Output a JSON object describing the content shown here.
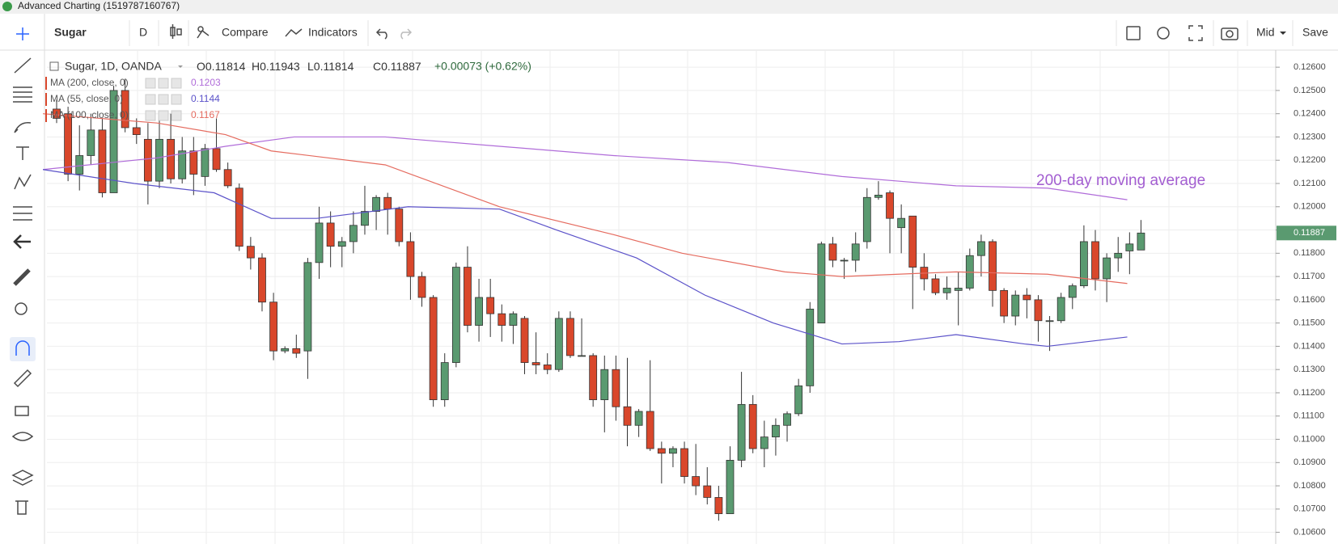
{
  "window_title": "Advanced Charting (1519787160767)",
  "toolbar": {
    "symbol": "Sugar",
    "interval": "D",
    "compare": "Compare",
    "indicators": "Indicators",
    "price_type": "Mid",
    "save": "Save"
  },
  "chart_data": {
    "type": "candlestick",
    "legend": {
      "symbol": "Sugar, 1D, OANDA",
      "ohlc": [
        {
          "label": "O",
          "value": 0.11814
        },
        {
          "label": "H",
          "value": 0.11943
        },
        {
          "label": "L",
          "value": 0.11814
        },
        {
          "label": "C",
          "value": 0.11887
        }
      ],
      "change": "+0.00073 (+0.62%)"
    },
    "up_color": "#5a9a70",
    "down_color": "#d9472b",
    "open": [
      0.1242,
      0.124,
      0.1214,
      0.1222,
      0.1233,
      0.1206,
      0.125,
      0.1234,
      0.1229,
      0.1211,
      0.1229,
      0.1212,
      0.1224,
      0.1213,
      0.1225,
      0.1216,
      0.1208,
      0.1183,
      0.1178,
      0.1159,
      0.1138,
      0.1139,
      0.1138,
      0.1176,
      0.1193,
      0.1183,
      0.1185,
      0.1192,
      0.1198,
      0.1204,
      0.1199,
      0.1185,
      0.117,
      0.1161,
      0.1117,
      0.1133,
      0.1174,
      0.1149,
      0.1161,
      0.1154,
      0.1149,
      0.1152,
      0.1133,
      0.1132,
      0.113,
      0.1152,
      0.1136,
      0.1136,
      0.1117,
      0.113,
      0.1114,
      0.1106,
      0.1112,
      0.1096,
      0.1094,
      0.1096,
      0.1084,
      0.108,
      0.1075,
      0.1068,
      0.1091,
      0.1115,
      0.1096,
      0.1101,
      0.1106,
      0.1111,
      0.1123,
      0.115,
      0.1184,
      0.1177,
      0.1177,
      0.1185,
      0.1204,
      0.1206,
      0.1191,
      0.1196,
      0.1174,
      0.1169,
      0.1163,
      0.1164,
      0.1165,
      0.1179,
      0.1185,
      0.1164,
      0.1153,
      0.1162,
      0.116,
      0.1151,
      0.1151,
      0.1161,
      0.1166,
      0.1185,
      0.1169,
      0.1178,
      0.1181,
      0.11814
    ],
    "high": [
      0.1246,
      0.1243,
      0.1235,
      0.124,
      0.1238,
      0.1252,
      0.1255,
      0.1238,
      0.1236,
      0.1238,
      0.124,
      0.123,
      0.123,
      0.1227,
      0.1238,
      0.1219,
      0.121,
      0.1187,
      0.118,
      0.1163,
      0.114,
      0.1145,
      0.1178,
      0.12,
      0.1198,
      0.1187,
      0.1198,
      0.1209,
      0.1205,
      0.1206,
      0.12,
      0.1189,
      0.1172,
      0.1162,
      0.1137,
      0.1176,
      0.1183,
      0.1169,
      0.1169,
      0.1158,
      0.1155,
      0.1153,
      0.1146,
      0.1137,
      0.1155,
      0.1155,
      0.1152,
      0.1137,
      0.1136,
      0.1136,
      0.1135,
      0.1113,
      0.1134,
      0.1099,
      0.1097,
      0.1099,
      0.1098,
      0.1088,
      0.108,
      0.1097,
      0.1129,
      0.1119,
      0.1108,
      0.1109,
      0.1112,
      0.1126,
      0.1159,
      0.1185,
      0.1187,
      0.1178,
      0.1189,
      0.1208,
      0.1211,
      0.1207,
      0.1201,
      0.1196,
      0.118,
      0.1171,
      0.117,
      0.1172,
      0.1182,
      0.1188,
      0.1186,
      0.1165,
      0.1164,
      0.1165,
      0.1162,
      0.1153,
      0.1163,
      0.1167,
      0.1192,
      0.119,
      0.118,
      0.1187,
      0.1189,
      0.11943
    ],
    "low": [
      0.1236,
      0.1211,
      0.1207,
      0.1218,
      0.1204,
      0.1206,
      0.1232,
      0.1227,
      0.1201,
      0.1208,
      0.121,
      0.121,
      0.1205,
      0.1209,
      0.1215,
      0.1208,
      0.1181,
      0.1173,
      0.1155,
      0.1134,
      0.1137,
      0.1135,
      0.1126,
      0.1169,
      0.1174,
      0.1174,
      0.118,
      0.1188,
      0.119,
      0.1188,
      0.1183,
      0.116,
      0.1157,
      0.1114,
      0.1114,
      0.1131,
      0.1146,
      0.1142,
      0.1144,
      0.1142,
      0.1141,
      0.1128,
      0.1128,
      0.1128,
      0.1129,
      0.1135,
      0.1136,
      0.1114,
      0.1103,
      0.1108,
      0.1097,
      0.1101,
      0.1095,
      0.1081,
      0.1088,
      0.1081,
      0.1076,
      0.1072,
      0.1065,
      0.1068,
      0.1088,
      0.1094,
      0.1088,
      0.1093,
      0.1099,
      0.111,
      0.112,
      0.115,
      0.1174,
      0.1169,
      0.1172,
      0.1182,
      0.1203,
      0.118,
      0.118,
      0.1156,
      0.1164,
      0.1162,
      0.116,
      0.1149,
      0.1164,
      0.117,
      0.1157,
      0.115,
      0.1149,
      0.1152,
      0.1142,
      0.1138,
      0.115,
      0.1156,
      0.1165,
      0.1164,
      0.1159,
      0.1172,
      0.1171,
      0.11814
    ],
    "close": [
      0.1238,
      0.1214,
      0.1222,
      0.1233,
      0.1206,
      0.125,
      0.1234,
      0.1231,
      0.1211,
      0.1229,
      0.1212,
      0.1224,
      0.1214,
      0.1225,
      0.1216,
      0.1209,
      0.1183,
      0.1178,
      0.1159,
      0.1138,
      0.1139,
      0.1137,
      0.1176,
      0.1193,
      0.1183,
      0.1185,
      0.1192,
      0.1198,
      0.1204,
      0.1199,
      0.1185,
      0.117,
      0.1161,
      0.1117,
      0.1133,
      0.1174,
      0.1149,
      0.1161,
      0.1154,
      0.1149,
      0.1154,
      0.1133,
      0.1132,
      0.113,
      0.1152,
      0.1136,
      0.1136,
      0.1117,
      0.113,
      0.1114,
      0.1106,
      0.1112,
      0.1096,
      0.1094,
      0.1096,
      0.1084,
      0.108,
      0.1075,
      0.1068,
      0.1091,
      0.1115,
      0.1096,
      0.1101,
      0.1106,
      0.1111,
      0.1123,
      0.1156,
      0.1184,
      0.1177,
      0.1177,
      0.1184,
      0.1204,
      0.1205,
      0.1195,
      0.1195,
      0.1174,
      0.1169,
      0.1163,
      0.1165,
      0.1165,
      0.1179,
      0.1185,
      0.1164,
      0.1153,
      0.1162,
      0.116,
      0.1151,
      0.1151,
      0.1161,
      0.1166,
      0.1185,
      0.1169,
      0.1178,
      0.118,
      0.1184,
      0.11887
    ],
    "series": [
      {
        "name": "MA (200, close, 0)",
        "color": "#b06cd9",
        "last": 0.1203,
        "x": [
          0,
          10,
          16,
          22,
          30,
          40,
          50,
          60,
          70,
          80,
          88,
          95
        ],
        "values": [
          0.1216,
          0.1221,
          0.1226,
          0.123,
          0.123,
          0.1226,
          0.1222,
          0.1219,
          0.1213,
          0.1209,
          0.1208,
          0.1203
        ]
      },
      {
        "name": "MA (55, close, 0)",
        "color": "#5b52c9",
        "last": 0.1144,
        "x": [
          0,
          8,
          15,
          20,
          24,
          32,
          40,
          45,
          52,
          58,
          64,
          70,
          75,
          80,
          86,
          88,
          95
        ],
        "values": [
          0.1216,
          0.121,
          0.1206,
          0.1195,
          0.1195,
          0.12,
          0.1199,
          0.119,
          0.1178,
          0.1162,
          0.115,
          0.1141,
          0.1142,
          0.1145,
          0.1141,
          0.114,
          0.1144
        ]
      },
      {
        "name": "MA (100, close, 0)",
        "color": "#e56b5f",
        "last": 0.1167,
        "x": [
          0,
          10,
          16,
          20,
          30,
          40,
          50,
          56,
          65,
          70,
          80,
          88,
          95
        ],
        "values": [
          0.124,
          0.1236,
          0.1231,
          0.1224,
          0.1218,
          0.12,
          0.1188,
          0.118,
          0.1172,
          0.117,
          0.1172,
          0.1171,
          0.1167
        ]
      }
    ],
    "annotation": "200-day moving average",
    "last_price": 0.11887,
    "ylim": [
      0.1055,
      0.1267
    ],
    "yticks": [
      {
        "value": 0.106,
        "label": "0.10600"
      },
      {
        "value": 0.107,
        "label": "0.10700"
      },
      {
        "value": 0.108,
        "label": "0.10800"
      },
      {
        "value": 0.109,
        "label": "0.10900"
      },
      {
        "value": 0.11,
        "label": "0.11000"
      },
      {
        "value": 0.111,
        "label": "0.11100"
      },
      {
        "value": 0.112,
        "label": "0.11200"
      },
      {
        "value": 0.113,
        "label": "0.11300"
      },
      {
        "value": 0.114,
        "label": "0.11400"
      },
      {
        "value": 0.115,
        "label": "0.11500"
      },
      {
        "value": 0.116,
        "label": "0.11600"
      },
      {
        "value": 0.117,
        "label": "0.11700"
      },
      {
        "value": 0.118,
        "label": "0.11800"
      },
      {
        "value": 0.119,
        "label": "0.11900"
      },
      {
        "value": 0.12,
        "label": "0.12000"
      },
      {
        "value": 0.121,
        "label": "0.12100"
      },
      {
        "value": 0.122,
        "label": "0.12200"
      },
      {
        "value": 0.123,
        "label": "0.12300"
      },
      {
        "value": 0.124,
        "label": "0.12400"
      },
      {
        "value": 0.125,
        "label": "0.12500"
      },
      {
        "value": 0.126,
        "label": "0.12600"
      }
    ],
    "grid": true
  }
}
